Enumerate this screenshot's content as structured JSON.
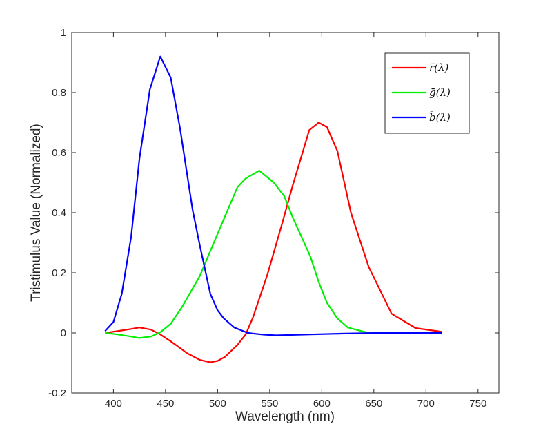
{
  "chart_data": {
    "type": "line",
    "title": "",
    "xlabel": "Wavelength (nm)",
    "ylabel": "Tristimulus Value (Normalized)",
    "xlim": [
      360,
      770
    ],
    "ylim": [
      -0.2,
      1
    ],
    "xticks": [
      400,
      450,
      500,
      550,
      600,
      650,
      700,
      750
    ],
    "xtick_labels": [
      "400",
      "450",
      "500",
      "550",
      "600",
      "650",
      "700",
      "750"
    ],
    "yticks": [
      -0.2,
      0,
      0.2,
      0.4,
      0.6,
      0.8,
      1
    ],
    "ytick_labels": [
      "-0.2",
      "0",
      "0.2",
      "0.4",
      "0.6",
      "0.8",
      "1"
    ],
    "grid": false,
    "legend_placement": "top-right",
    "series": [
      {
        "name": "r̄(λ)",
        "color": "#ff0000",
        "x": [
          392,
          404,
          417,
          425,
          436,
          445,
          455,
          471,
          483,
          493,
          500,
          507,
          519,
          527,
          534,
          548,
          562,
          572,
          588,
          597,
          605,
          615,
          628,
          645,
          667,
          690,
          715
        ],
        "y": [
          0,
          0.006,
          0.013,
          0.018,
          0.011,
          -0.005,
          -0.028,
          -0.068,
          -0.09,
          -0.098,
          -0.093,
          -0.08,
          -0.04,
          -0.005,
          0.052,
          0.196,
          0.365,
          0.49,
          0.675,
          0.7,
          0.685,
          0.605,
          0.4,
          0.22,
          0.064,
          0.016,
          0.004
        ]
      },
      {
        "name": "ḡ(λ)",
        "color": "#00ee00",
        "x": [
          392,
          404,
          417,
          425,
          436,
          445,
          455,
          466,
          483,
          500,
          519,
          527,
          540,
          554,
          564,
          572,
          589,
          597,
          605,
          615,
          625,
          645,
          715
        ],
        "y": [
          0,
          -0.005,
          -0.012,
          -0.017,
          -0.012,
          0.002,
          0.03,
          0.087,
          0.19,
          0.33,
          0.485,
          0.514,
          0.54,
          0.5,
          0.455,
          0.385,
          0.255,
          0.17,
          0.1,
          0.048,
          0.018,
          0,
          0
        ]
      },
      {
        "name": "b̄(λ)",
        "color": "#0000ff",
        "x": [
          392,
          400,
          408,
          417,
          425,
          435,
          445,
          455,
          464,
          476,
          483,
          493,
          500,
          506,
          516,
          529,
          542,
          556,
          589,
          622,
          655,
          715
        ],
        "y": [
          0.006,
          0.036,
          0.13,
          0.32,
          0.58,
          0.81,
          0.92,
          0.85,
          0.68,
          0.41,
          0.29,
          0.13,
          0.075,
          0.048,
          0.018,
          0,
          -0.005,
          -0.008,
          -0.005,
          -0.002,
          0,
          0
        ]
      }
    ]
  }
}
